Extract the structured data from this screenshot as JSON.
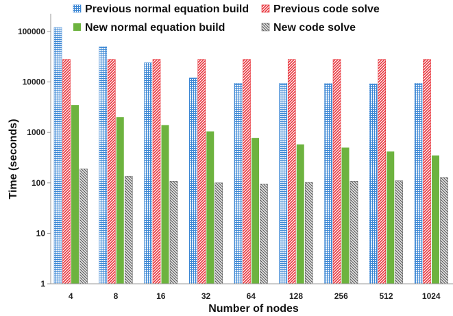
{
  "chart_data": {
    "type": "bar",
    "title": "",
    "xlabel": "Number of nodes",
    "ylabel": "Time (seconds)",
    "yscale": "log",
    "ylim": [
      1,
      100000
    ],
    "yticks": [
      "1",
      "10",
      "100",
      "1000",
      "10000",
      "100000"
    ],
    "categories": [
      "4",
      "8",
      "16",
      "32",
      "64",
      "128",
      "256",
      "512",
      "1024"
    ],
    "legend_position": "top",
    "grid": false,
    "series": [
      {
        "name": "Previous normal equation build",
        "pattern": "grid",
        "color": "#3a86d4",
        "values": [
          120000,
          50000,
          24000,
          12000,
          9400,
          9400,
          9300,
          9200,
          9400
        ]
      },
      {
        "name": "Previous code solve",
        "pattern": "diagonal",
        "color": "#e8323a",
        "values": [
          28000,
          28000,
          28000,
          28000,
          28000,
          28000,
          28000,
          28000,
          28000
        ]
      },
      {
        "name": "New normal equation build",
        "pattern": "solid",
        "color": "#6db33f",
        "values": [
          3500,
          2000,
          1400,
          1050,
          780,
          580,
          500,
          420,
          350
        ]
      },
      {
        "name": "New code solve",
        "pattern": "hatch",
        "color": "#666666",
        "values": [
          190,
          135,
          108,
          100,
          95,
          102,
          108,
          110,
          128
        ]
      }
    ]
  }
}
